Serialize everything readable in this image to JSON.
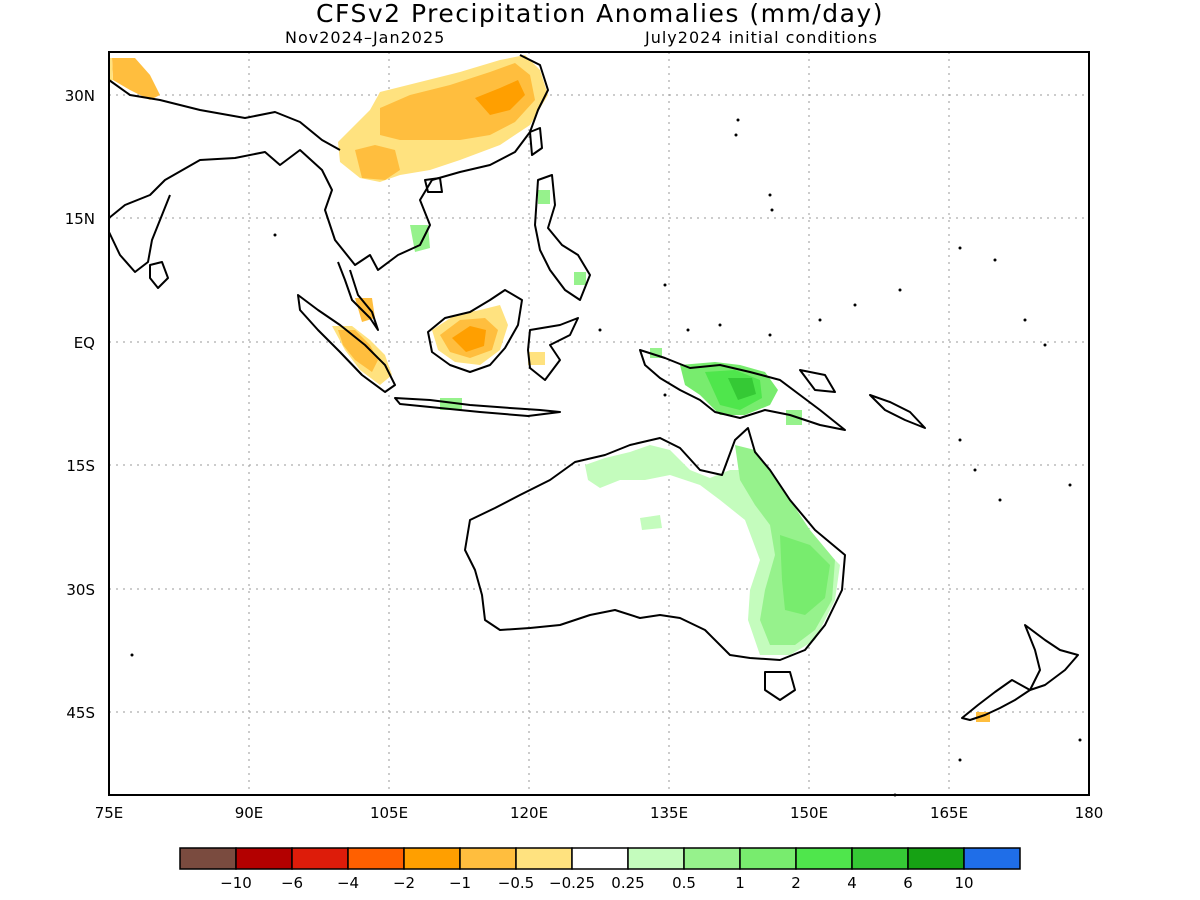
{
  "title": "CFSv2 Precipitation Anomalies (mm/day)",
  "subtitle_left": "Nov2024–Jan2025",
  "subtitle_right": "July2024 initial conditions",
  "map": {
    "lon_range": [
      75,
      180
    ],
    "lat_range": [
      -53,
      35
    ],
    "lon_ticks": [
      "75E",
      "90E",
      "105E",
      "120E",
      "135E",
      "150E",
      "165E",
      "180"
    ],
    "lat_ticks": [
      "30N",
      "15N",
      "EQ",
      "15S",
      "30S",
      "45S"
    ],
    "grid": "dotted",
    "regions_shown": [
      "South China / Southern Asia",
      "Southeast Asia",
      "Maritime Continent",
      "Australia",
      "New Zealand",
      "Western Pacific"
    ],
    "anomalies": [
      {
        "area": "southern China",
        "category": "-1 to -0.5",
        "sign": "dry"
      },
      {
        "area": "Tibetan plateau edge / northern Myanmar",
        "category": "-0.5 to -0.25",
        "sign": "dry"
      },
      {
        "area": "Sumatra",
        "category": "-1 to -0.5",
        "sign": "dry"
      },
      {
        "area": "Borneo",
        "category": "-2 to -1",
        "sign": "dry"
      },
      {
        "area": "New Guinea",
        "category": "2 to 4",
        "sign": "wet"
      },
      {
        "area": "northern Australia",
        "category": "0.25 to 0.5",
        "sign": "wet"
      },
      {
        "area": "eastern Australia",
        "category": "1 to 2",
        "sign": "wet"
      },
      {
        "area": "Vietnam coast",
        "category": "0.5 to 1",
        "sign": "wet"
      }
    ]
  },
  "colorbar": {
    "colors": [
      "#7a4b3f",
      "#b30000",
      "#dd1c0a",
      "#ff6000",
      "#ff9f00",
      "#ffbe3e",
      "#ffe27f",
      "#ffffff",
      "#c4fcbd",
      "#96f28c",
      "#78ec6e",
      "#4fe64c",
      "#35c935",
      "#16a214",
      "#1f6ee8"
    ],
    "labels": [
      "−10",
      "−6",
      "−4",
      "−2",
      "−1",
      "−0.5",
      "−0.25",
      "0.25",
      "0.5",
      "1",
      "2",
      "4",
      "6",
      "10"
    ]
  }
}
